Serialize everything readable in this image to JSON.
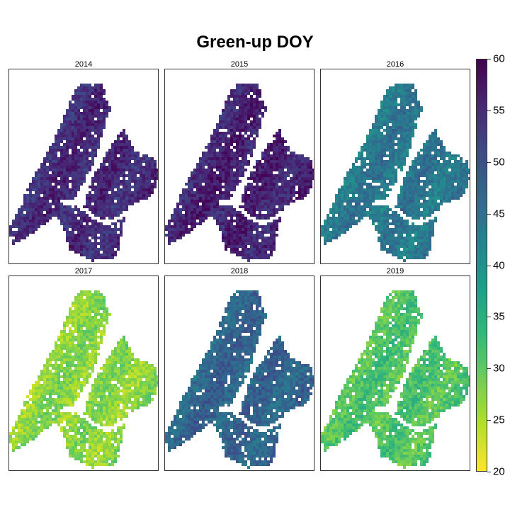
{
  "chart_data": {
    "type": "heatmap",
    "title": "Green-up DOY",
    "panels": [
      {
        "label": "2014",
        "mean_doy": 55
      },
      {
        "label": "2015",
        "mean_doy": 56
      },
      {
        "label": "2016",
        "mean_doy": 44
      },
      {
        "label": "2017",
        "mean_doy": 27
      },
      {
        "label": "2018",
        "mean_doy": 47
      },
      {
        "label": "2019",
        "mean_doy": 31
      }
    ],
    "colorbar": {
      "range": [
        20,
        60
      ],
      "ticks": [
        "20",
        "25",
        "30",
        "35",
        "40",
        "45",
        "50",
        "55",
        "60"
      ],
      "palette": [
        "#fde725",
        "#b5de2b",
        "#6ece58",
        "#35b779",
        "#1f9e89",
        "#26828e",
        "#31688e",
        "#3e4989",
        "#482878",
        "#440154"
      ]
    }
  }
}
